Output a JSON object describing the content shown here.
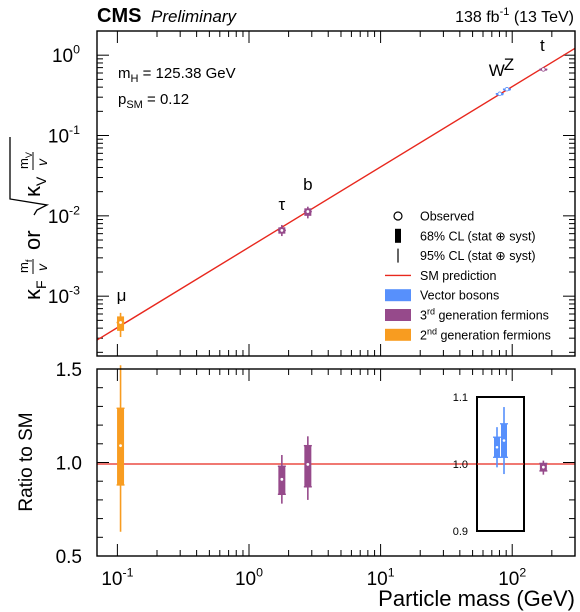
{
  "header": {
    "experiment": "CMS",
    "status": "Preliminary",
    "luminosity": "138 fb",
    "lumi_exponent": "-1",
    "energy": "(13 TeV)"
  },
  "annotations": {
    "mh_label": "m",
    "mh_sub": "H",
    "mh_value": "= 125.38 GeV",
    "psm_label": "p",
    "psm_sub": "SM",
    "psm_value": "= 0.12"
  },
  "chart_data": [
    {
      "type": "scatter",
      "panel": "top",
      "xscale": "log",
      "yscale": "log",
      "xlim": [
        0.07,
        300
      ],
      "ylim": [
        0.00018,
        2.0
      ],
      "xlabel": "",
      "ylabel": "κF mf/v or √κV mV/v",
      "yticks": [
        {
          "value": 0.001,
          "label": "10",
          "exp": "-3"
        },
        {
          "value": 0.01,
          "label": "10",
          "exp": "-2"
        },
        {
          "value": 0.1,
          "label": "10",
          "exp": "-1"
        },
        {
          "value": 1,
          "label": "10",
          "exp": "0"
        }
      ],
      "sm_line": {
        "name": "SM prediction",
        "color": "#e8281e",
        "x_range": [
          0.07,
          300
        ],
        "v_gev": 246.22
      },
      "points": [
        {
          "label": "μ",
          "mass": 0.1057,
          "y": 0.00047,
          "y68": [
            0.00037,
            0.00056
          ],
          "y95": [
            0.00031,
            0.00062
          ],
          "color": "#f89c20",
          "group": "2nd generation fermions"
        },
        {
          "label": "τ",
          "mass": 1.777,
          "y": 0.0066,
          "y68": [
            0.006,
            0.0072
          ],
          "y95": [
            0.0056,
            0.0077
          ],
          "color": "#964a8b",
          "group": "3rd generation fermions"
        },
        {
          "label": "b",
          "mass": 2.8,
          "y": 0.0113,
          "y68": [
            0.01,
            0.0124
          ],
          "y95": [
            0.0093,
            0.013
          ],
          "color": "#964a8b",
          "group": "3rd generation fermions"
        },
        {
          "label": "W",
          "mass": 80.4,
          "y": 0.331,
          "y68": [
            0.327,
            0.335
          ],
          "y95": [
            0.323,
            0.339
          ],
          "color": "#5790fc",
          "group": "Vector bosons"
        },
        {
          "label": "Z",
          "mass": 91.19,
          "y": 0.377,
          "y68": [
            0.371,
            0.383
          ],
          "y95": [
            0.366,
            0.388
          ],
          "color": "#5790fc",
          "group": "Vector bosons"
        },
        {
          "label": "t",
          "mass": 172.5,
          "y": 0.665,
          "y68": [
            0.65,
            0.68
          ],
          "y95": [
            0.635,
            0.695
          ],
          "color": "#964a8b",
          "group": "3rd generation fermions"
        }
      ],
      "legend": {
        "position": "lower-right",
        "entries": [
          {
            "kind": "marker",
            "label": "Observed"
          },
          {
            "kind": "err68",
            "label": "68% CL (stat ⊕ syst)"
          },
          {
            "kind": "err95",
            "label": "95% CL (stat ⊕ syst)"
          },
          {
            "kind": "line",
            "label": "SM prediction",
            "color": "#e8281e"
          },
          {
            "kind": "box",
            "label": "Vector bosons",
            "color": "#5790fc"
          },
          {
            "kind": "box",
            "label": "generation fermions",
            "prefix": "3",
            "sup": "rd",
            "color": "#964a8b"
          },
          {
            "kind": "box",
            "label": "generation fermions",
            "prefix": "2",
            "sup": "nd",
            "color": "#f89c20"
          }
        ]
      }
    },
    {
      "type": "scatter",
      "panel": "ratio",
      "xscale": "log",
      "xlim": [
        0.07,
        300
      ],
      "ylim": [
        0.5,
        1.5
      ],
      "xlabel": "Particle mass (GeV)",
      "ylabel": "Ratio to SM",
      "xticks": [
        {
          "value": 0.1,
          "label": "10",
          "exp": "-1"
        },
        {
          "value": 1,
          "label": "10",
          "exp": "0"
        },
        {
          "value": 10,
          "label": "10",
          "exp": "1"
        },
        {
          "value": 100,
          "label": "10",
          "exp": "2"
        }
      ],
      "yticks": [
        {
          "value": 0.5,
          "label": "0.5"
        },
        {
          "value": 1.0,
          "label": "1.0"
        },
        {
          "value": 1.5,
          "label": "1.5"
        }
      ],
      "reference": 1.0,
      "points": [
        {
          "label": "μ",
          "mass": 0.1057,
          "y": 1.09,
          "y68": [
            0.88,
            1.29
          ],
          "y95": [
            0.63,
            1.53
          ],
          "color": "#f89c20"
        },
        {
          "label": "τ",
          "mass": 1.777,
          "y": 0.91,
          "y68": [
            0.83,
            0.98
          ],
          "y95": [
            0.78,
            1.04
          ],
          "color": "#964a8b"
        },
        {
          "label": "b",
          "mass": 2.8,
          "y": 0.99,
          "y68": [
            0.87,
            1.09
          ],
          "y95": [
            0.8,
            1.14
          ],
          "color": "#964a8b"
        },
        {
          "label": "t",
          "mass": 172.5,
          "y": 0.975,
          "y68": [
            0.955,
            0.995
          ],
          "y95": [
            0.935,
            1.01
          ],
          "color": "#964a8b"
        }
      ],
      "inset": {
        "ylim": [
          0.9,
          1.1
        ],
        "yticks": [
          {
            "value": 0.9,
            "label": "0.9"
          },
          {
            "value": 1.0,
            "label": "1.0"
          },
          {
            "value": 1.1,
            "label": "1.1"
          }
        ],
        "points": [
          {
            "label": "W",
            "y": 1.025,
            "y68": [
              1.01,
              1.04
            ],
            "y95": [
              0.995,
              1.055
            ],
            "color": "#5790fc"
          },
          {
            "label": "Z",
            "y": 1.035,
            "y68": [
              1.01,
              1.06
            ],
            "y95": [
              0.985,
              1.085
            ],
            "color": "#5790fc"
          }
        ]
      }
    }
  ]
}
